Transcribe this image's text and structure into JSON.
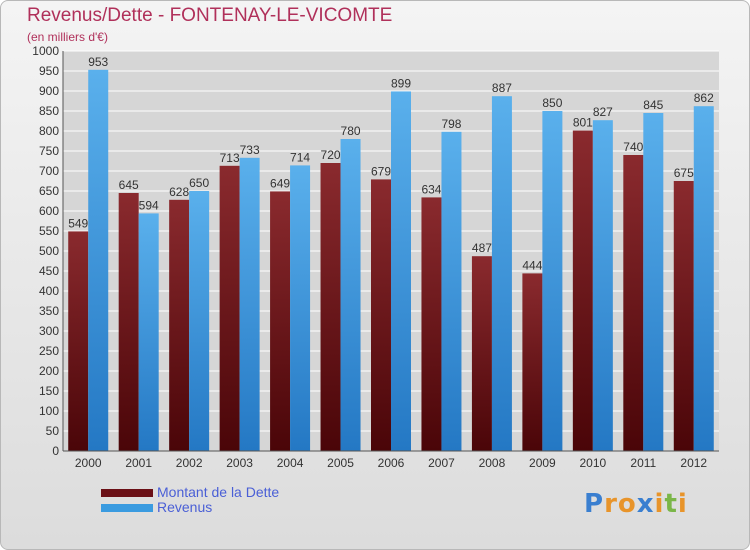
{
  "title": "Revenus/Dette - FONTENAY-LE-VICOMTE",
  "subtitle": "(en milliers d'€)",
  "colors": {
    "dette": "#6b1016",
    "revenus": "#3a9be0",
    "title": "#b0305a",
    "legend_text": "#4a5fd6",
    "grid": "#ffffff",
    "plot_bg": "#d7d7d7"
  },
  "legend": [
    {
      "label": "Montant de la Dette",
      "color": "#6b1016"
    },
    {
      "label": "Revenus",
      "color": "#3a9be0"
    }
  ],
  "logo": {
    "letters": [
      "P",
      "r",
      "o",
      "x",
      "i",
      "t",
      "i"
    ],
    "colors": [
      "#3a7fd0",
      "#e8942a",
      "#e8942a",
      "#3a7fd0",
      "#e8942a",
      "#7ab648",
      "#e8942a"
    ]
  },
  "chart_data": {
    "type": "bar",
    "categories": [
      "2000",
      "2001",
      "2002",
      "2003",
      "2004",
      "2005",
      "2006",
      "2007",
      "2008",
      "2009",
      "2010",
      "2011",
      "2012"
    ],
    "series": [
      {
        "name": "Montant de la Dette",
        "values": [
          549,
          645,
          628,
          713,
          649,
          720,
          679,
          634,
          487,
          444,
          801,
          740,
          675
        ]
      },
      {
        "name": "Revenus",
        "values": [
          953,
          594,
          650,
          733,
          714,
          780,
          899,
          798,
          887,
          850,
          827,
          845,
          862
        ]
      }
    ],
    "ylim": [
      0,
      1000
    ],
    "yticks": [
      "0",
      "50",
      "100",
      "150",
      "200",
      "250",
      "300",
      "350",
      "400",
      "450",
      "500",
      "550",
      "600",
      "650",
      "700",
      "750",
      "800",
      "850",
      "900",
      "950",
      "1000"
    ],
    "grid": true,
    "legend_position": "bottom-left"
  }
}
